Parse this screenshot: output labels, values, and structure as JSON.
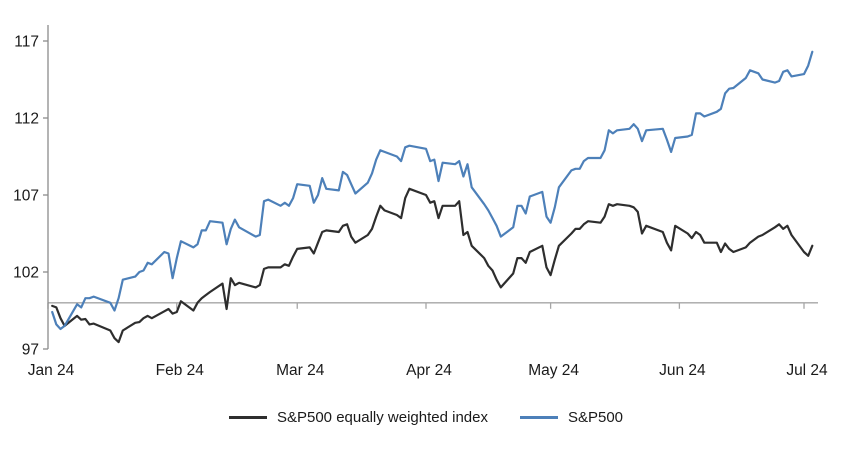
{
  "chart_data": {
    "type": "line",
    "title": "",
    "grid": "baseline-only",
    "legend_position": "bottom-center",
    "x_axis": {
      "unit": "days since 2024-01-01",
      "tick_day_offsets": [
        0,
        31,
        60,
        91,
        121,
        152,
        182
      ],
      "tick_labels": [
        "Jan 24",
        "Feb 24",
        "Mar 24",
        "Apr 24",
        "May 24",
        "Jun 24",
        "Jul 24"
      ]
    },
    "y_axis": {
      "min": 97,
      "max": 117,
      "ticks": [
        97,
        102,
        107,
        112,
        117
      ],
      "tick_labels": [
        "97",
        "102",
        "107",
        "112",
        "117"
      ],
      "baseline_value": 100
    },
    "x_days": [
      1,
      2,
      3,
      4,
      7,
      8,
      9,
      10,
      11,
      15,
      16,
      17,
      18,
      21,
      22,
      23,
      24,
      25,
      28,
      29,
      30,
      31,
      32,
      35,
      36,
      37,
      38,
      39,
      42,
      43,
      44,
      45,
      46,
      50,
      51,
      52,
      53,
      56,
      57,
      58,
      59,
      60,
      63,
      64,
      65,
      66,
      67,
      70,
      71,
      72,
      73,
      74,
      77,
      78,
      79,
      80,
      81,
      84,
      85,
      86,
      87,
      91,
      92,
      93,
      94,
      95,
      98,
      99,
      100,
      101,
      102,
      105,
      106,
      107,
      108,
      109,
      112,
      113,
      114,
      115,
      116,
      119,
      120,
      121,
      122,
      123,
      126,
      127,
      128,
      129,
      130,
      133,
      134,
      135,
      136,
      137,
      140,
      141,
      142,
      143,
      144,
      148,
      149,
      150,
      151,
      154,
      155,
      156,
      157,
      158,
      161,
      162,
      163,
      164,
      165,
      168,
      169,
      171,
      172,
      175,
      176,
      177,
      178,
      179,
      182,
      183,
      184
    ],
    "series": [
      {
        "name": "S&P500 equally weighted index",
        "color": "#2e2e2e",
        "values": [
          99.8,
          99.7,
          99.0,
          98.5,
          99.15,
          98.9,
          98.95,
          98.6,
          98.65,
          98.2,
          97.7,
          97.45,
          98.2,
          98.7,
          98.75,
          99.0,
          99.15,
          99.0,
          99.45,
          99.6,
          99.3,
          99.4,
          100.1,
          99.5,
          100.0,
          100.3,
          100.5,
          100.7,
          101.25,
          99.6,
          101.6,
          101.15,
          101.3,
          101.0,
          101.15,
          102.2,
          102.3,
          102.3,
          102.5,
          102.4,
          103.0,
          103.5,
          103.6,
          103.2,
          103.9,
          104.6,
          104.7,
          104.6,
          105.0,
          105.1,
          104.3,
          103.9,
          104.4,
          104.8,
          105.6,
          106.3,
          106.0,
          105.7,
          105.5,
          106.8,
          107.4,
          107.0,
          106.5,
          106.6,
          105.5,
          106.3,
          106.3,
          106.6,
          104.4,
          104.6,
          103.7,
          102.9,
          102.4,
          102.1,
          101.5,
          101.0,
          101.9,
          102.9,
          102.9,
          102.6,
          103.3,
          103.7,
          102.3,
          101.8,
          102.8,
          103.7,
          104.5,
          104.8,
          104.8,
          105.1,
          105.3,
          105.2,
          105.6,
          106.4,
          106.3,
          106.4,
          106.3,
          106.2,
          105.9,
          104.5,
          105.0,
          104.6,
          103.9,
          103.4,
          105.0,
          104.5,
          104.2,
          104.6,
          104.4,
          103.9,
          103.9,
          103.3,
          103.85,
          103.5,
          103.3,
          103.6,
          103.9,
          104.3,
          104.4,
          104.9,
          105.1,
          104.8,
          105.0,
          104.4,
          103.3,
          103.05,
          103.7
        ]
      },
      {
        "name": "S&P500",
        "color": "#4d80b9",
        "values": [
          99.4,
          98.6,
          98.3,
          98.5,
          99.9,
          99.7,
          100.3,
          100.3,
          100.4,
          100.0,
          99.5,
          100.3,
          101.5,
          101.7,
          102.0,
          102.1,
          102.6,
          102.5,
          103.3,
          103.2,
          101.6,
          102.9,
          104.0,
          103.6,
          103.8,
          104.7,
          104.7,
          105.3,
          105.2,
          103.8,
          104.8,
          105.4,
          104.9,
          104.3,
          104.4,
          106.6,
          106.7,
          106.3,
          106.5,
          106.3,
          106.8,
          107.7,
          107.6,
          106.5,
          107.0,
          108.1,
          107.4,
          107.3,
          108.5,
          108.3,
          107.7,
          107.1,
          107.8,
          108.4,
          109.3,
          109.9,
          109.8,
          109.5,
          109.2,
          110.1,
          110.2,
          110.0,
          109.2,
          109.3,
          107.9,
          109.1,
          109.0,
          109.2,
          108.2,
          109.0,
          107.5,
          106.4,
          106.0,
          105.5,
          105.0,
          104.3,
          104.9,
          106.3,
          106.3,
          105.8,
          106.9,
          107.2,
          105.6,
          105.2,
          106.2,
          107.5,
          108.6,
          108.7,
          108.7,
          109.2,
          109.4,
          109.4,
          109.9,
          111.2,
          111.0,
          111.2,
          111.3,
          111.6,
          111.3,
          110.5,
          111.2,
          111.3,
          110.6,
          109.8,
          110.7,
          110.8,
          110.9,
          112.3,
          112.3,
          112.1,
          112.4,
          112.6,
          113.6,
          113.9,
          113.95,
          114.6,
          115.1,
          114.9,
          114.5,
          114.3,
          114.4,
          115.0,
          115.1,
          114.7,
          114.85,
          115.4,
          116.3
        ]
      }
    ]
  },
  "legend": {
    "items": [
      {
        "label": "S&P500 equally weighted index",
        "color": "#2e2e2e"
      },
      {
        "label": "S&P500",
        "color": "#4d80b9"
      }
    ]
  },
  "colors": {
    "background": "#ffffff",
    "axis": "#8c8c8c",
    "baseline": "#a6a6a6",
    "tick_text": "#1a1a1a"
  }
}
